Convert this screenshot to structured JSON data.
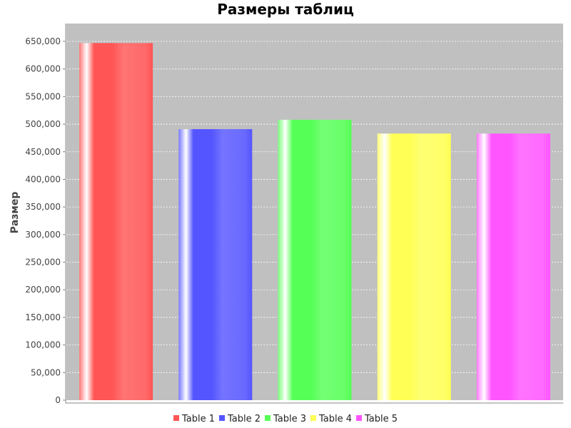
{
  "chart_data": {
    "type": "bar",
    "title": "Размеры таблиц",
    "xlabel": "",
    "ylabel": "Размер",
    "ylim": [
      0,
      650000
    ],
    "yticks": [
      0,
      50000,
      100000,
      150000,
      200000,
      250000,
      300000,
      350000,
      400000,
      450000,
      500000,
      550000,
      600000,
      650000
    ],
    "ytick_labels": [
      "0",
      "50,000",
      "100,000",
      "150,000",
      "200,000",
      "250,000",
      "300,000",
      "350,000",
      "400,000",
      "450,000",
      "500,000",
      "550,000",
      "600,000",
      "650,000"
    ],
    "grid": true,
    "legend_position": "bottom",
    "series": [
      {
        "name": "Table 1",
        "value": 647000,
        "color": "#ff5555"
      },
      {
        "name": "Table 2",
        "value": 491000,
        "color": "#5555ff"
      },
      {
        "name": "Table 3",
        "value": 508000,
        "color": "#55ff55"
      },
      {
        "name": "Table 4",
        "value": 483000,
        "color": "#ffff55"
      },
      {
        "name": "Table 5",
        "value": 483000,
        "color": "#ff55ff"
      }
    ],
    "plot_background": "#c0c0c0",
    "grid_color": "#ffffff"
  }
}
